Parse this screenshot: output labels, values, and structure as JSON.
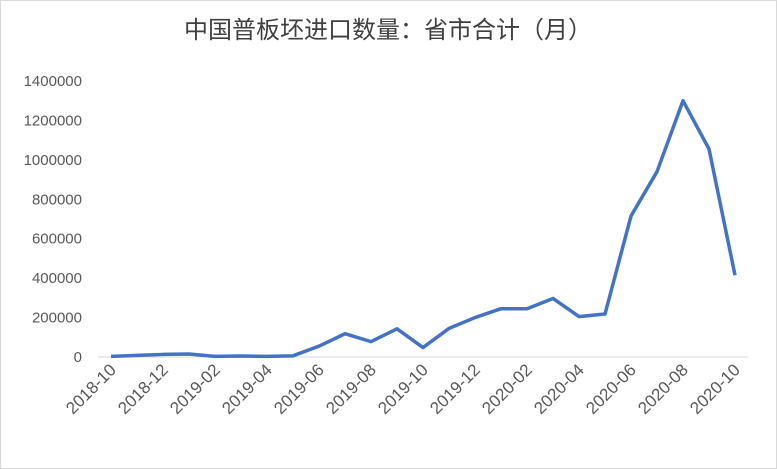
{
  "chart_data": {
    "type": "line",
    "title": "中国普板坯进口数量：省市合计（月）",
    "categories": [
      "2018-10",
      null,
      "2018-12",
      null,
      "2019-02",
      null,
      "2019-04",
      null,
      "2019-06",
      null,
      "2019-08",
      null,
      "2019-10",
      null,
      "2019-12",
      null,
      "2020-02",
      null,
      "2020-04",
      null,
      "2020-06",
      null,
      "2020-08",
      null,
      "2020-10"
    ],
    "series": [
      {
        "name": "中国普板坯进口数量：省市合计",
        "color": "#4472c4",
        "values": [
          3000,
          8000,
          13000,
          15000,
          3000,
          5000,
          3000,
          6000,
          55000,
          118000,
          78000,
          143000,
          48000,
          145000,
          200000,
          245000,
          245000,
          297000,
          205000,
          218000,
          715000,
          940000,
          1300000,
          1055000,
          415000
        ]
      }
    ],
    "ylim": [
      0,
      1400000
    ],
    "yticks": [
      0,
      200000,
      400000,
      600000,
      800000,
      1000000,
      1200000,
      1400000
    ],
    "grid": false
  }
}
